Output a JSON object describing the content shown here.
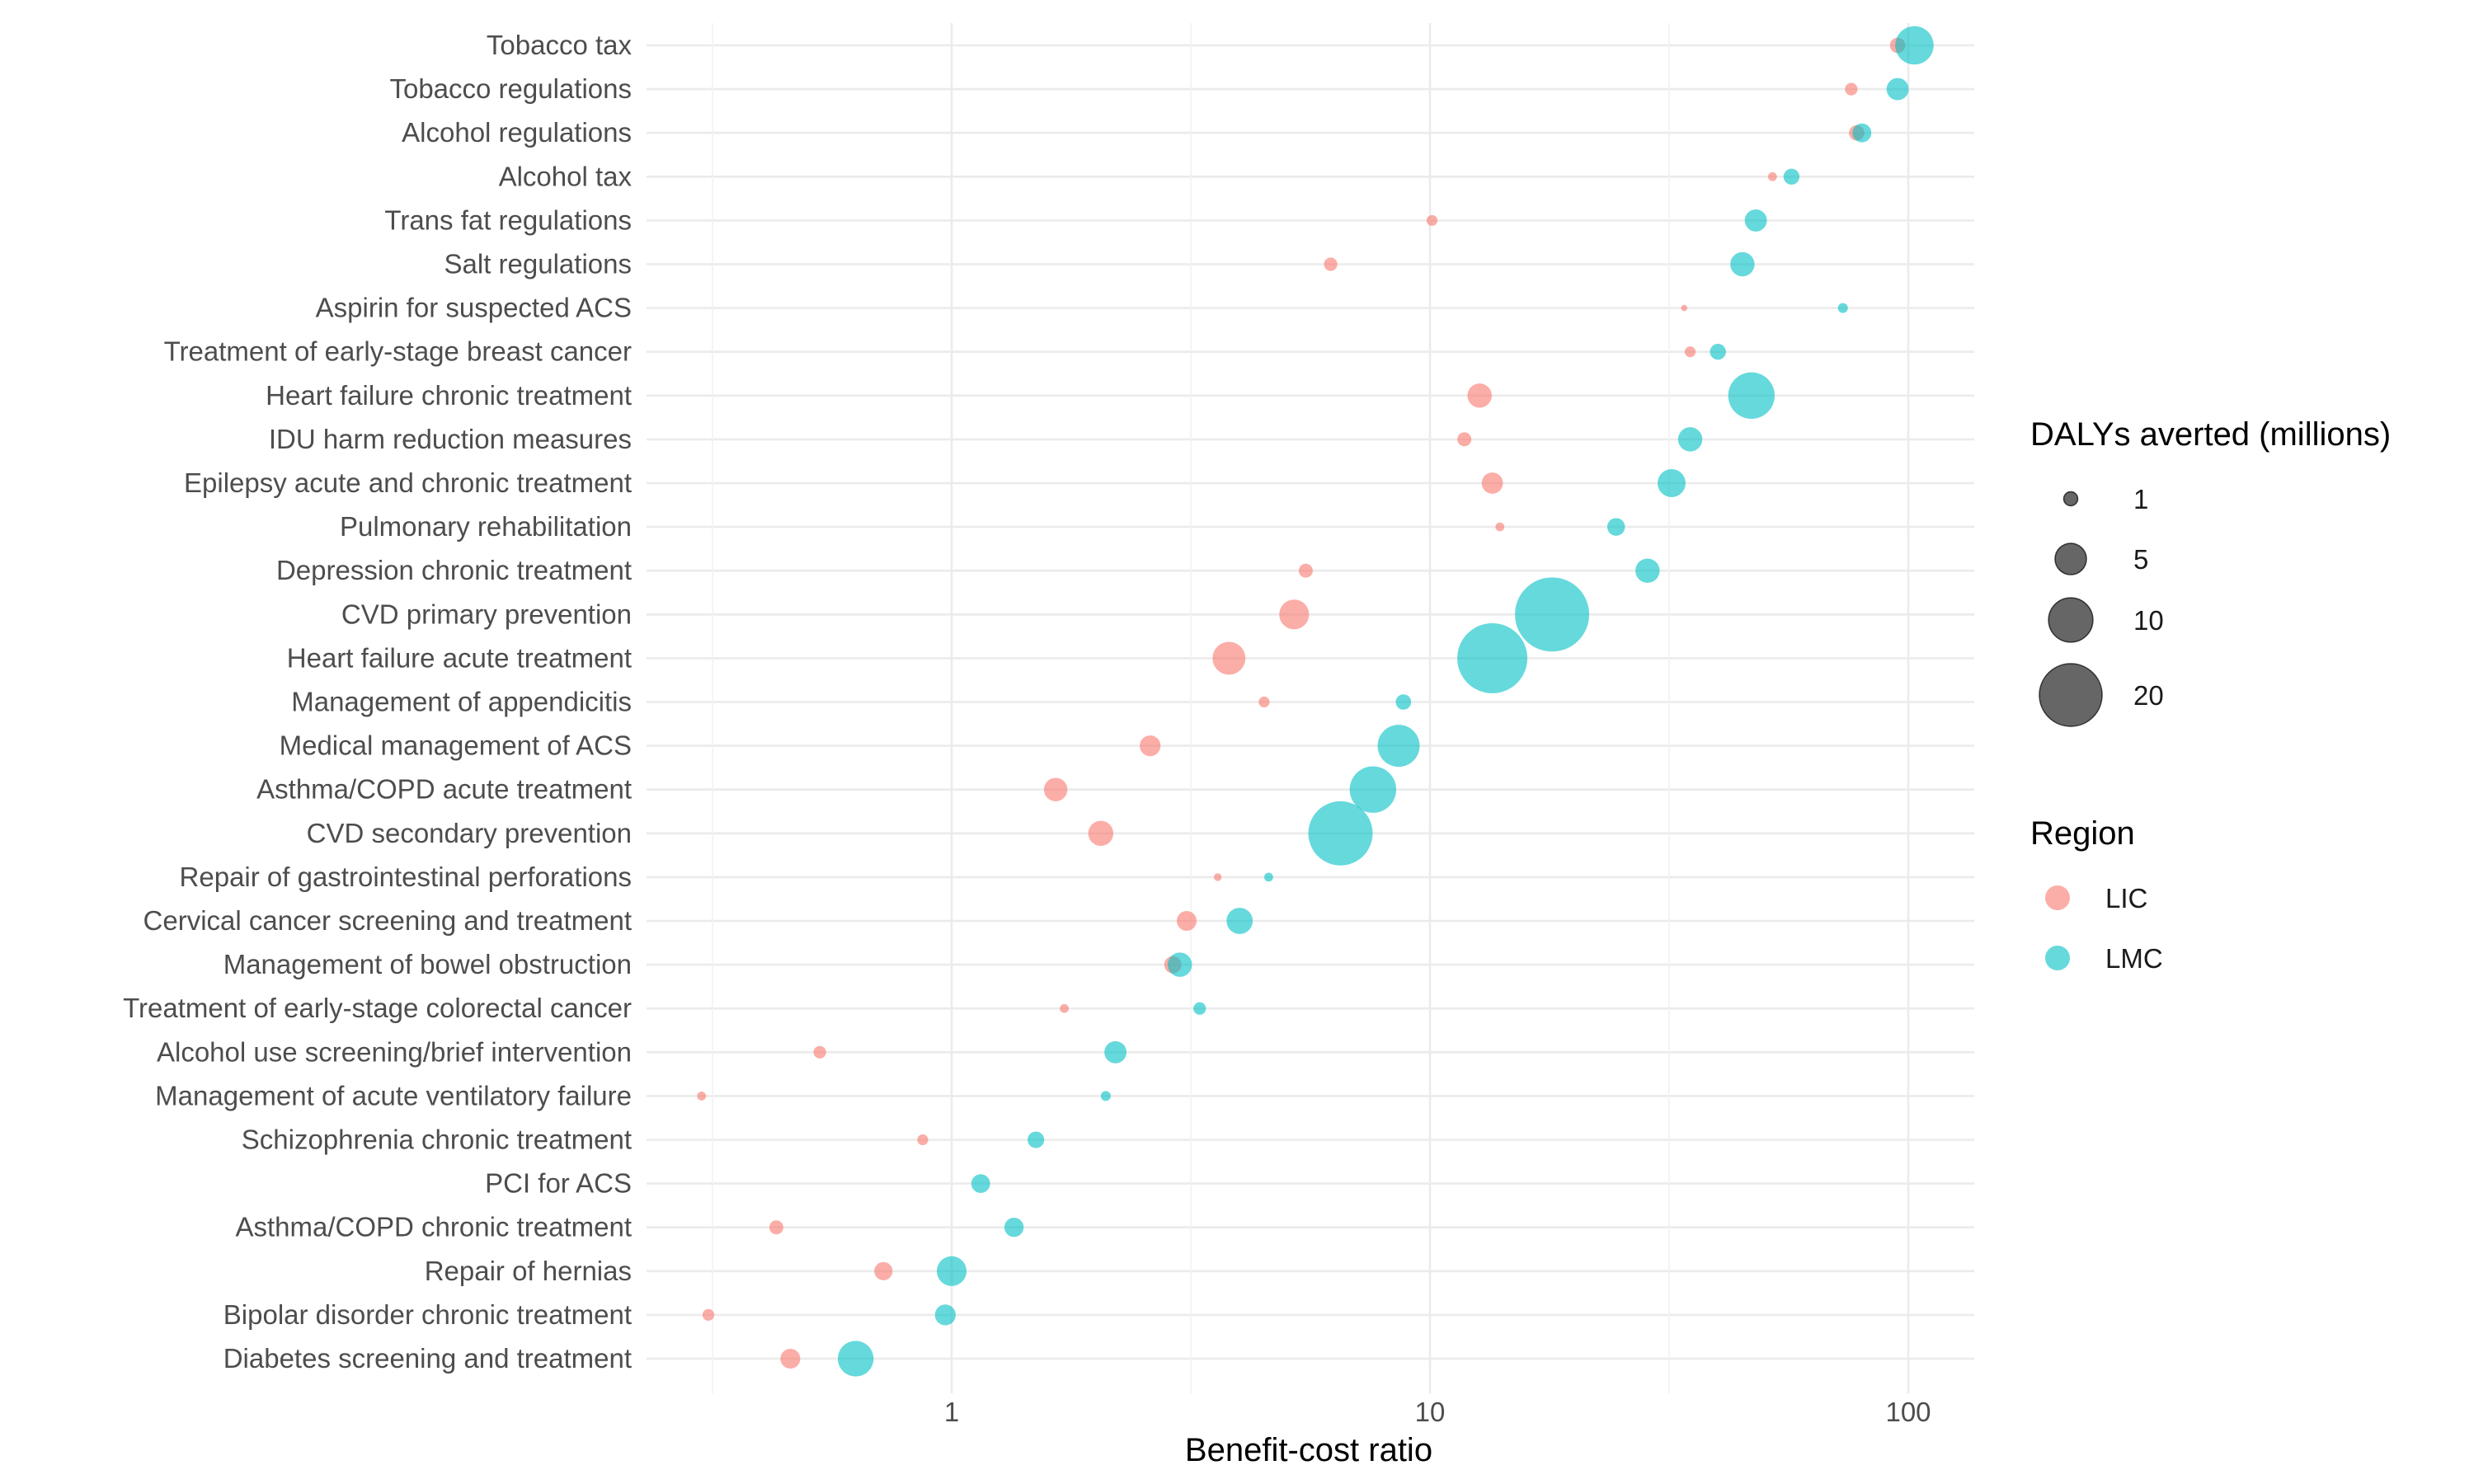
{
  "chart_data": {
    "type": "scatter",
    "title": "",
    "xlabel": "Benefit-cost ratio",
    "ylabel": "",
    "x_scale": "log10",
    "xlim": [
      0.27,
      130
    ],
    "x_ticks": [
      {
        "value": 1,
        "label": "1"
      },
      {
        "value": 10,
        "label": "10"
      },
      {
        "value": 100,
        "label": "100"
      }
    ],
    "grid": true,
    "categories": [
      "Tobacco tax",
      "Tobacco regulations",
      "Alcohol regulations",
      "Alcohol tax",
      "Trans fat regulations",
      "Salt regulations",
      "Aspirin for suspected ACS",
      "Treatment of early-stage breast cancer",
      "Heart failure chronic treatment",
      "IDU harm reduction measures",
      "Epilepsy acute and chronic treatment",
      "Pulmonary rehabilitation",
      "Depression chronic treatment",
      "CVD primary prevention",
      "Heart failure acute treatment",
      "Management of appendicitis",
      "Medical management of ACS",
      "Asthma/COPD acute treatment",
      "CVD secondary prevention",
      "Repair of gastrointestinal perforations",
      "Cervical cancer screening and treatment",
      "Management of bowel obstruction",
      "Treatment of early-stage colorectal cancer",
      "Alcohol use screening/brief intervention",
      "Management of acute ventilatory failure",
      "Schizophrenia chronic treatment",
      "PCI for ACS",
      "Asthma/COPD chronic treatment",
      "Repair of hernias",
      "Bipolar disorder chronic treatment",
      "Diabetes screening and treatment"
    ],
    "series": [
      {
        "name": "LIC",
        "color": "#F8766D",
        "x": [
          95,
          76,
          78,
          52,
          10.1,
          6.2,
          34,
          35,
          12.7,
          11.8,
          13.5,
          14,
          5.5,
          5.2,
          3.8,
          4.5,
          2.6,
          1.65,
          2.05,
          3.6,
          3.1,
          2.9,
          1.72,
          0.53,
          0.3,
          0.87,
          1.15,
          0.43,
          0.72,
          0.31,
          0.46
        ],
        "size": [
          1.2,
          0.8,
          1.2,
          0.4,
          0.6,
          0.9,
          0.2,
          0.6,
          3.0,
          1.0,
          2.3,
          0.4,
          1.0,
          4.5,
          5.5,
          0.6,
          2.2,
          2.8,
          3.2,
          0.3,
          2.0,
          1.5,
          0.4,
          0.8,
          0.4,
          0.6,
          0,
          1.0,
          1.7,
          0.7,
          2.0
        ]
      },
      {
        "name": "LMC",
        "color": "#00BFC4",
        "x": [
          103,
          95,
          80,
          57,
          48,
          45,
          73,
          40,
          47,
          35,
          32,
          24.5,
          28.5,
          18,
          13.5,
          8.8,
          8.6,
          7.6,
          6.5,
          4.6,
          4.0,
          3.0,
          3.3,
          2.2,
          2.1,
          1.5,
          1.15,
          1.35,
          1.0,
          0.97,
          0.63
        ],
        "size": [
          7.5,
          2.5,
          1.8,
          1.3,
          2.5,
          3.0,
          0.5,
          1.3,
          11.0,
          3.0,
          4.0,
          1.6,
          3.0,
          28.0,
          25.0,
          1.2,
          9.0,
          11.0,
          21.0,
          0.4,
          3.5,
          3.0,
          0.8,
          2.5,
          0.5,
          1.4,
          1.8,
          1.9,
          4.5,
          2.2,
          6.5
        ]
      }
    ],
    "legend": {
      "placement": "right",
      "size_title": "DALYs averted (millions)",
      "size_entries": [
        {
          "value": 1,
          "label": "1"
        },
        {
          "value": 5,
          "label": "5"
        },
        {
          "value": 10,
          "label": "10"
        },
        {
          "value": 20,
          "label": "20"
        }
      ],
      "color_title": "Region",
      "color_entries": [
        "LIC",
        "LMC"
      ],
      "size_entry_color": "#000000"
    }
  }
}
